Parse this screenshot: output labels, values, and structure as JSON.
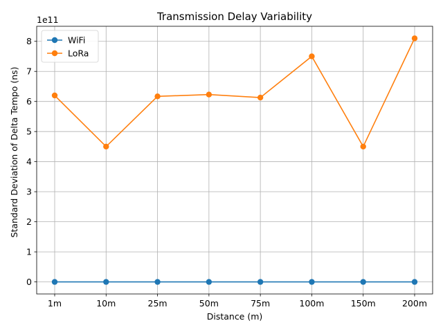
{
  "chart_data": {
    "type": "line",
    "title": "Transmission Delay Variability",
    "xlabel": "Distance (m)",
    "ylabel": "Standard Deviation of Delta Tempo (ns)",
    "categories": [
      "1m",
      "10m",
      "25m",
      "50m",
      "75m",
      "100m",
      "150m",
      "200m"
    ],
    "y_scale_label": "1e11",
    "y_scale_factor": 100000000000,
    "ylim": [
      -0.4,
      8.5
    ],
    "yticks": [
      0,
      1,
      2,
      3,
      4,
      5,
      6,
      7,
      8
    ],
    "grid": true,
    "legend_position": "top-left",
    "series": [
      {
        "name": "WiFi",
        "color": "#1f77b4",
        "values": [
          0,
          0,
          0,
          0,
          0,
          0,
          0,
          0
        ]
      },
      {
        "name": "LoRa",
        "color": "#ff7f0e",
        "values": [
          6.2,
          4.5,
          6.17,
          6.23,
          6.13,
          7.5,
          4.5,
          8.1
        ]
      }
    ]
  }
}
